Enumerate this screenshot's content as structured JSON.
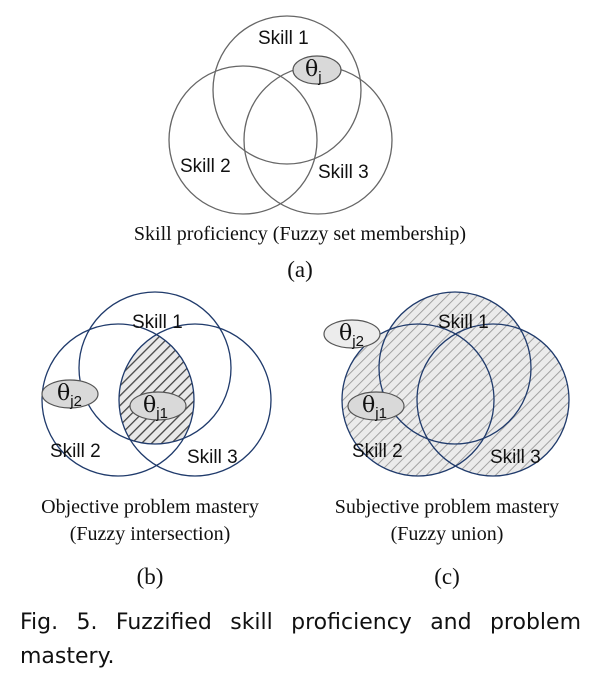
{
  "panel_a": {
    "skills": [
      "Skill 1",
      "Skill 2",
      "Skill 3"
    ],
    "theta": "θ",
    "theta_sub": "j",
    "caption": "Skill proficiency (Fuzzy set membership)",
    "label": "(a)"
  },
  "panel_b": {
    "skills": [
      "Skill 1",
      "Skill 2",
      "Skill 3"
    ],
    "theta1": "θ",
    "theta1_sub": "j1",
    "theta2": "θ",
    "theta2_sub": "j2",
    "caption_line1": "Objective problem mastery",
    "caption_line2": "(Fuzzy intersection)",
    "label": "(b)"
  },
  "panel_c": {
    "skills": [
      "Skill 1",
      "Skill 2",
      "Skill 3"
    ],
    "theta1": "θ",
    "theta1_sub": "j1",
    "theta2": "θ",
    "theta2_sub": "j2",
    "caption_line1": "Subjective problem mastery",
    "caption_line2": "(Fuzzy union)",
    "label": "(c)"
  },
  "figure_caption": "Fig. 5. Fuzzified skill proficiency and problem mastery.",
  "colors": {
    "circle_a": "#666666",
    "circle_bc": "#1f3a6b",
    "ellipse_fill": "#d9d9d9",
    "hatch": "#555555"
  }
}
